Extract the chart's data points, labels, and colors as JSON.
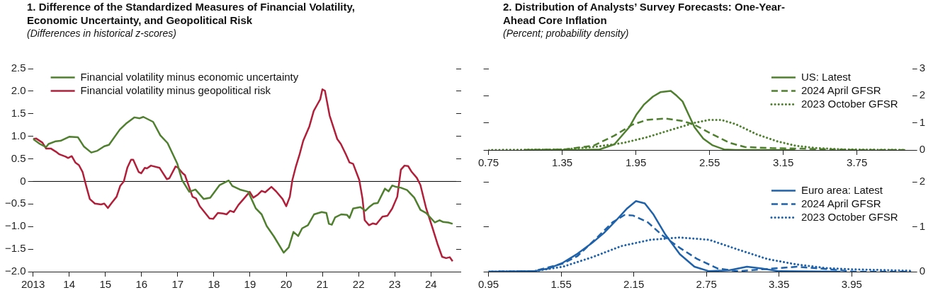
{
  "chart_data": [
    {
      "type": "line",
      "title": "1. Difference of the Standardized Measures of Financial Volatility, Economic Uncertainty, and Geopolitical Risk",
      "subtitle": "(Differences in historical z-scores)",
      "xlim": [
        2013,
        2024.7
      ],
      "xticks": [
        2013,
        {
          "value": 2014,
          "label": "14"
        },
        {
          "value": 2015,
          "label": "15"
        },
        {
          "value": 2016,
          "label": "16"
        },
        {
          "value": 2017,
          "label": "17"
        },
        {
          "value": 2018,
          "label": "18"
        },
        {
          "value": 2019,
          "label": "19"
        },
        {
          "value": 2020,
          "label": "20"
        },
        {
          "value": 2021,
          "label": "21"
        },
        {
          "value": 2022,
          "label": "22"
        },
        {
          "value": 2023,
          "label": "23"
        },
        {
          "value": 2024,
          "label": "24"
        }
      ],
      "ylim": [
        -2,
        2.5
      ],
      "yticks": [
        {
          "value": -2,
          "label": "−2.0"
        },
        {
          "value": -1.5,
          "label": "−1.5"
        },
        {
          "value": -1,
          "label": "−1.0"
        },
        {
          "value": -0.5,
          "label": "−0.5"
        },
        0,
        0.5,
        {
          "value": 1,
          "label": "1.0"
        },
        1.5,
        {
          "value": 2,
          "label": "2.0"
        },
        2.5
      ],
      "grid": false,
      "legend": "top left",
      "marker": "none",
      "line_style": "solid",
      "ref_lines": [
        {
          "axis": "y",
          "value": 0,
          "color": "#000000"
        }
      ],
      "series": [
        {
          "name": "Financial volatility minus economic uncertainty",
          "color": "#4f7f2f",
          "x": [
            2013.0,
            2013.19,
            2013.36,
            2013.43,
            2013.63,
            2013.76,
            2014.0,
            2014.24,
            2014.41,
            2014.61,
            2014.78,
            2014.97,
            2015.1,
            2015.4,
            2015.57,
            2015.8,
            2015.95,
            2016.05,
            2016.32,
            2016.52,
            2016.72,
            2016.99,
            2017.12,
            2017.32,
            2017.49,
            2017.72,
            2017.9,
            2018.16,
            2018.41,
            2018.51,
            2018.72,
            2018.95,
            2019.16,
            2019.32,
            2019.46,
            2019.66,
            2019.93,
            2020.07,
            2020.2,
            2020.33,
            2020.44,
            2020.6,
            2020.77,
            2020.98,
            2021.11,
            2021.18,
            2021.26,
            2021.35,
            2021.52,
            2021.68,
            2021.75,
            2021.85,
            2022.05,
            2022.19,
            2022.29,
            2022.42,
            2022.53,
            2022.73,
            2022.83,
            2022.93,
            2023.03,
            2023.17,
            2023.34,
            2023.54,
            2023.71,
            2023.87,
            2024.11,
            2024.24,
            2024.34,
            2024.48,
            2024.6
          ],
          "values": [
            0.94,
            0.83,
            0.76,
            0.83,
            0.89,
            0.9,
            0.99,
            0.98,
            0.77,
            0.64,
            0.68,
            0.78,
            0.81,
            1.15,
            1.28,
            1.42,
            1.4,
            1.43,
            1.32,
            1.02,
            0.85,
            0.39,
            0.03,
            -0.23,
            -0.18,
            -0.39,
            -0.36,
            -0.08,
            0.02,
            -0.1,
            -0.18,
            -0.23,
            -0.6,
            -0.73,
            -0.99,
            -1.22,
            -1.58,
            -1.46,
            -1.12,
            -1.21,
            -1.04,
            -0.97,
            -0.73,
            -0.68,
            -0.7,
            -0.94,
            -0.96,
            -0.8,
            -0.73,
            -0.74,
            -0.81,
            -0.6,
            -0.57,
            -0.65,
            -0.57,
            -0.49,
            -0.48,
            -0.16,
            -0.22,
            -0.09,
            -0.12,
            -0.14,
            -0.19,
            -0.36,
            -0.63,
            -0.7,
            -0.91,
            -0.86,
            -0.9,
            -0.91,
            -0.94
          ]
        },
        {
          "name": "Financial volatility minus geopolitical risk",
          "color": "#b0203a",
          "x": [
            2013.0,
            2013.09,
            2013.26,
            2013.36,
            2013.49,
            2013.63,
            2013.73,
            2013.9,
            2013.97,
            2014.07,
            2014.17,
            2014.27,
            2014.37,
            2014.47,
            2014.57,
            2014.71,
            2014.88,
            2014.97,
            2015.07,
            2015.18,
            2015.31,
            2015.41,
            2015.51,
            2015.61,
            2015.71,
            2015.77,
            2015.92,
            2015.99,
            2016.09,
            2016.15,
            2016.26,
            2016.5,
            2016.7,
            2016.77,
            2016.94,
            2017.0,
            2017.14,
            2017.2,
            2017.41,
            2017.51,
            2017.61,
            2017.88,
            2017.98,
            2018.11,
            2018.25,
            2018.35,
            2018.45,
            2018.55,
            2018.68,
            2018.82,
            2018.99,
            2019.09,
            2019.22,
            2019.32,
            2019.42,
            2019.59,
            2019.72,
            2019.9,
            2020.0,
            2020.1,
            2020.17,
            2020.27,
            2020.37,
            2020.47,
            2020.64,
            2020.76,
            2020.87,
            2020.94,
            2021.0,
            2021.07,
            2021.2,
            2021.41,
            2021.51,
            2021.65,
            2021.75,
            2021.85,
            2022.02,
            2022.11,
            2022.17,
            2022.29,
            2022.39,
            2022.49,
            2022.66,
            2022.8,
            2022.93,
            2023.07,
            2023.17,
            2023.27,
            2023.37,
            2023.47,
            2023.61,
            2023.71,
            2023.87,
            2024.04,
            2024.18,
            2024.31,
            2024.42,
            2024.52,
            2024.6
          ],
          "values": [
            0.94,
            0.95,
            0.86,
            0.73,
            0.73,
            0.66,
            0.6,
            0.55,
            0.52,
            0.56,
            0.42,
            0.36,
            0.21,
            -0.1,
            -0.39,
            -0.49,
            -0.51,
            -0.49,
            -0.59,
            -0.47,
            -0.34,
            -0.1,
            0.0,
            0.31,
            0.48,
            0.48,
            0.21,
            0.18,
            0.3,
            0.29,
            0.35,
            0.3,
            0.05,
            0.07,
            0.33,
            0.31,
            0.18,
            0.14,
            -0.34,
            -0.38,
            -0.55,
            -0.82,
            -0.83,
            -0.7,
            -0.71,
            -0.73,
            -0.65,
            -0.68,
            -0.52,
            -0.39,
            -0.23,
            -0.36,
            -0.29,
            -0.21,
            -0.24,
            -0.12,
            -0.22,
            -0.39,
            -0.55,
            -0.34,
            0.03,
            0.34,
            0.6,
            0.9,
            1.22,
            1.56,
            1.72,
            1.82,
            2.04,
            2.01,
            1.46,
            0.94,
            0.83,
            0.6,
            0.42,
            0.39,
            0.03,
            -0.39,
            -0.86,
            -0.97,
            -0.93,
            -0.95,
            -0.78,
            -0.76,
            -0.6,
            -0.34,
            0.26,
            0.35,
            0.34,
            0.21,
            0.08,
            -0.08,
            -0.6,
            -1.02,
            -1.38,
            -1.67,
            -1.7,
            -1.68,
            -1.77
          ]
        }
      ]
    },
    {
      "type": "line",
      "title": "2. Distribution of Analysts’ Survey Forecasts: One-Year-Ahead Core Inflation",
      "subtitle": "(Percent; probability density)",
      "xlim": [
        0.75,
        4.2
      ],
      "xticks": [
        0.75,
        1.35,
        1.95,
        2.55,
        3.15,
        3.75
      ],
      "ylim": [
        0,
        3
      ],
      "yticks": [
        0,
        1,
        2,
        3
      ],
      "grid": false,
      "legend": "top right",
      "marker": "none",
      "series": [
        {
          "name": "US: Latest",
          "color": "#4f7f2f",
          "line_style": "solid",
          "x": [
            1.05,
            1.5,
            1.655,
            1.775,
            1.896,
            1.956,
            2.017,
            2.089,
            2.149,
            2.234,
            2.282,
            2.33,
            2.378,
            2.427,
            2.499,
            2.571,
            2.668,
            2.76,
            3.247
          ],
          "values": [
            0,
            0,
            0.02,
            0.21,
            0.84,
            1.32,
            1.68,
            1.97,
            2.13,
            2.18,
            2.0,
            1.79,
            1.32,
            0.84,
            0.42,
            0.18,
            0.02,
            0,
            0
          ]
        },
        {
          "name": "2024 April GFSR",
          "color": "#4f7f2f",
          "line_style": "dashed",
          "x": [
            1.04,
            1.365,
            1.606,
            1.775,
            1.92,
            2.04,
            2.185,
            2.33,
            2.427,
            2.571,
            2.716,
            2.837,
            3.054,
            3.295,
            3.536,
            3.778,
            4.152
          ],
          "values": [
            0,
            0.02,
            0.16,
            0.53,
            0.93,
            1.11,
            1.16,
            1.07,
            0.93,
            0.58,
            0.26,
            0.11,
            0.07,
            0.05,
            0.02,
            0,
            0
          ]
        },
        {
          "name": "2023 October GFSR",
          "color": "#4f7f2f",
          "line_style": "dotted",
          "x": [
            0.75,
            1.365,
            1.606,
            1.848,
            2.04,
            2.234,
            2.427,
            2.547,
            2.644,
            2.764,
            2.933,
            3.1,
            3.247,
            3.416,
            3.657,
            4.152
          ],
          "values": [
            0,
            0.02,
            0.11,
            0.26,
            0.47,
            0.74,
            1.0,
            1.11,
            1.11,
            0.95,
            0.58,
            0.32,
            0.16,
            0.07,
            0.02,
            0
          ]
        }
      ]
    },
    {
      "type": "line",
      "xlim": [
        0.95,
        4.45
      ],
      "xticks": [
        0.95,
        1.55,
        2.15,
        2.75,
        3.35,
        3.95
      ],
      "ylim": [
        0,
        2
      ],
      "yticks": [
        0,
        1,
        2
      ],
      "grid": false,
      "legend": "top right",
      "marker": "none",
      "series": [
        {
          "name": "Euro area: Latest",
          "color": "#1f62aa",
          "line_style": "solid",
          "x": [
            0.95,
            1.324,
            1.445,
            1.565,
            1.686,
            1.806,
            1.903,
            2.0,
            2.096,
            2.168,
            2.241,
            2.313,
            2.41,
            2.53,
            2.651,
            2.771,
            2.94,
            3.085,
            3.206,
            3.35,
            3.857
          ],
          "values": [
            0,
            0.01,
            0.07,
            0.2,
            0.4,
            0.64,
            0.86,
            1.13,
            1.41,
            1.57,
            1.52,
            1.27,
            0.83,
            0.39,
            0.11,
            0.01,
            0.03,
            0.11,
            0.07,
            0.01,
            0
          ]
        },
        {
          "name": "2024 April GFSR",
          "color": "#1f62aa",
          "line_style": "dashed",
          "x": [
            0.95,
            1.324,
            1.565,
            1.686,
            1.855,
            1.975,
            2.072,
            2.144,
            2.265,
            2.385,
            2.53,
            2.675,
            2.844,
            3.013,
            3.254,
            3.496,
            3.737,
            3.978,
            4.44
          ],
          "values": [
            0,
            0.01,
            0.18,
            0.35,
            0.78,
            1.1,
            1.26,
            1.25,
            1.1,
            0.81,
            0.53,
            0.28,
            0.07,
            0.01,
            0.06,
            0.11,
            0.06,
            0,
            0
          ]
        },
        {
          "name": "2023 October GFSR",
          "color": "#1f62aa",
          "line_style": "dotted",
          "x": [
            0.95,
            1.324,
            1.565,
            1.806,
            2.048,
            2.289,
            2.53,
            2.771,
            3.013,
            3.254,
            3.496,
            3.737,
            3.978,
            4.44
          ],
          "values": [
            0,
            0.01,
            0.11,
            0.32,
            0.57,
            0.71,
            0.76,
            0.71,
            0.49,
            0.28,
            0.16,
            0.08,
            0.05,
            0.02
          ]
        }
      ]
    }
  ]
}
